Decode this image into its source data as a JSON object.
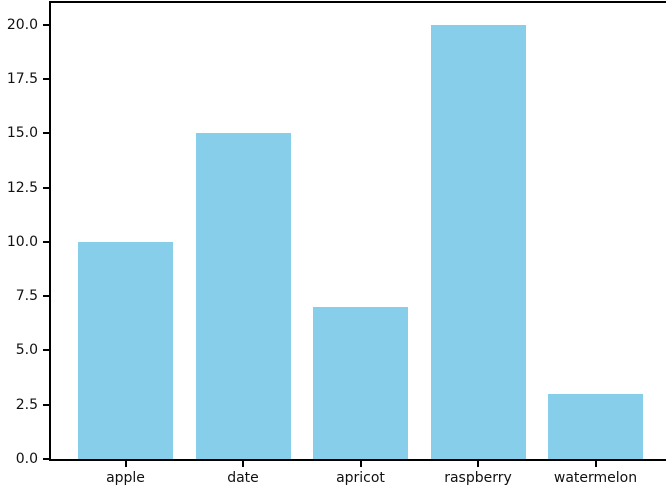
{
  "chart_data": {
    "type": "bar",
    "categories": [
      "apple",
      "date",
      "apricot",
      "raspberry",
      "watermelon"
    ],
    "values": [
      10,
      15,
      7,
      20,
      3
    ],
    "title": "",
    "xlabel": "",
    "ylabel": "",
    "ylim": [
      0,
      21
    ],
    "yticks": [
      0.0,
      2.5,
      5.0,
      7.5,
      10.0,
      12.5,
      15.0,
      17.5,
      20.0
    ],
    "ytick_labels": [
      "0.0",
      "2.5",
      "5.0",
      "7.5",
      "10.0",
      "12.5",
      "15.0",
      "17.5",
      "20.0"
    ],
    "grid": false,
    "legend": null,
    "bar_color": "#87CEEB"
  },
  "colors": {
    "bar": "#87CEEB",
    "axis": "#000000",
    "tick_text": "#111111",
    "background": "#ffffff"
  }
}
